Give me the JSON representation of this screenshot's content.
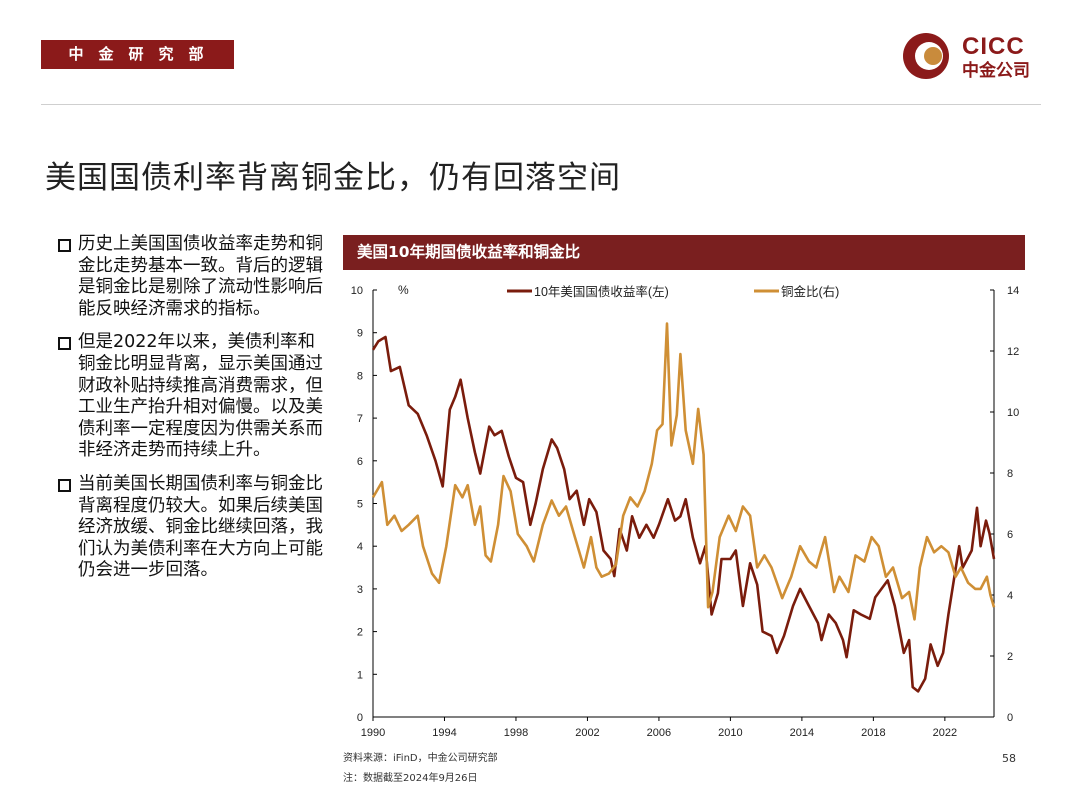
{
  "header": {
    "tag": "中金研究部",
    "logo_en": "CICC",
    "logo_cn": "中金公司"
  },
  "title": "美国国债利率背离铜金比，仍有回落空间",
  "bullets": [
    "历史上美国国债收益率走势和铜金比走势基本一致。背后的逻辑是铜金比是剔除了流动性影响后能反映经济需求的指标。",
    "但是2022年以来，美债利率和铜金比明显背离，显示美国通过财政补贴持续推高消费需求，但工业生产抬升相对偏慢。以及美债利率一定程度因为供需关系而非经济走势而持续上升。",
    "当前美国长期国债利率与铜金比背离程度仍较大。如果后续美国经济放缓、铜金比继续回落，我们认为美债利率在大方向上可能仍会进一步回落。"
  ],
  "chart_header": "美国10年期国债收益率和铜金比",
  "footer": {
    "source": "资料来源：iFinD，中金公司研究部",
    "note": "注：数据截至2024年9月26日",
    "page": "58"
  },
  "colors": {
    "brand": "#8b1a1a",
    "series_yield": "#7a1c0c",
    "series_ratio": "#cf8f35"
  },
  "chart_data": {
    "type": "line",
    "title": "美国10年期国债收益率和铜金比",
    "unit_label": "%",
    "x_ticks": [
      "1990",
      "1994",
      "1998",
      "2002",
      "2006",
      "2010",
      "2014",
      "2018",
      "2022"
    ],
    "xlim": [
      1990,
      2024.75
    ],
    "ylim_left": [
      0,
      10
    ],
    "ylim_right": [
      0,
      14
    ],
    "yticks_left": [
      "0",
      "1",
      "2",
      "3",
      "4",
      "5",
      "6",
      "7",
      "8",
      "9",
      "10"
    ],
    "yticks_right": [
      "0",
      "2",
      "4",
      "6",
      "8",
      "10",
      "12",
      "14"
    ],
    "legend": "top",
    "series": [
      {
        "name": "10年美国国债收益率(左)",
        "axis": "left",
        "points": [
          [
            1990.0,
            8.6
          ],
          [
            1990.3,
            8.8
          ],
          [
            1990.7,
            8.9
          ],
          [
            1991.0,
            8.1
          ],
          [
            1991.5,
            8.2
          ],
          [
            1992.0,
            7.3
          ],
          [
            1992.5,
            7.1
          ],
          [
            1993.0,
            6.6
          ],
          [
            1993.5,
            6.0
          ],
          [
            1993.9,
            5.4
          ],
          [
            1994.3,
            7.2
          ],
          [
            1994.6,
            7.5
          ],
          [
            1994.9,
            7.9
          ],
          [
            1995.3,
            7.0
          ],
          [
            1995.7,
            6.2
          ],
          [
            1996.0,
            5.7
          ],
          [
            1996.5,
            6.8
          ],
          [
            1996.8,
            6.6
          ],
          [
            1997.2,
            6.7
          ],
          [
            1997.6,
            6.1
          ],
          [
            1998.0,
            5.6
          ],
          [
            1998.4,
            5.5
          ],
          [
            1998.8,
            4.5
          ],
          [
            1999.1,
            5.0
          ],
          [
            1999.5,
            5.8
          ],
          [
            2000.0,
            6.5
          ],
          [
            2000.3,
            6.3
          ],
          [
            2000.7,
            5.8
          ],
          [
            2001.0,
            5.1
          ],
          [
            2001.4,
            5.3
          ],
          [
            2001.8,
            4.5
          ],
          [
            2002.1,
            5.1
          ],
          [
            2002.5,
            4.8
          ],
          [
            2002.9,
            3.9
          ],
          [
            2003.3,
            3.7
          ],
          [
            2003.5,
            3.3
          ],
          [
            2003.8,
            4.4
          ],
          [
            2004.2,
            3.9
          ],
          [
            2004.5,
            4.7
          ],
          [
            2004.9,
            4.2
          ],
          [
            2005.3,
            4.5
          ],
          [
            2005.7,
            4.2
          ],
          [
            2006.0,
            4.5
          ],
          [
            2006.5,
            5.1
          ],
          [
            2006.9,
            4.6
          ],
          [
            2007.2,
            4.7
          ],
          [
            2007.5,
            5.1
          ],
          [
            2007.9,
            4.2
          ],
          [
            2008.3,
            3.6
          ],
          [
            2008.6,
            4.0
          ],
          [
            2008.95,
            2.4
          ],
          [
            2009.3,
            2.9
          ],
          [
            2009.5,
            3.7
          ],
          [
            2010.0,
            3.7
          ],
          [
            2010.3,
            3.9
          ],
          [
            2010.7,
            2.6
          ],
          [
            2011.1,
            3.6
          ],
          [
            2011.5,
            3.1
          ],
          [
            2011.8,
            2.0
          ],
          [
            2012.3,
            1.9
          ],
          [
            2012.6,
            1.5
          ],
          [
            2013.0,
            1.9
          ],
          [
            2013.5,
            2.6
          ],
          [
            2013.9,
            3.0
          ],
          [
            2014.4,
            2.6
          ],
          [
            2014.9,
            2.2
          ],
          [
            2015.1,
            1.8
          ],
          [
            2015.5,
            2.4
          ],
          [
            2015.9,
            2.2
          ],
          [
            2016.3,
            1.8
          ],
          [
            2016.5,
            1.4
          ],
          [
            2016.9,
            2.5
          ],
          [
            2017.3,
            2.4
          ],
          [
            2017.8,
            2.3
          ],
          [
            2018.1,
            2.8
          ],
          [
            2018.8,
            3.2
          ],
          [
            2019.2,
            2.6
          ],
          [
            2019.7,
            1.5
          ],
          [
            2020.0,
            1.8
          ],
          [
            2020.2,
            0.7
          ],
          [
            2020.5,
            0.6
          ],
          [
            2020.9,
            0.9
          ],
          [
            2021.2,
            1.7
          ],
          [
            2021.6,
            1.2
          ],
          [
            2021.9,
            1.5
          ],
          [
            2022.2,
            2.4
          ],
          [
            2022.8,
            4.0
          ],
          [
            2023.0,
            3.5
          ],
          [
            2023.5,
            3.9
          ],
          [
            2023.8,
            4.9
          ],
          [
            2024.0,
            4.0
          ],
          [
            2024.3,
            4.6
          ],
          [
            2024.5,
            4.3
          ],
          [
            2024.75,
            3.7
          ]
        ]
      },
      {
        "name": "铜金比(右)",
        "axis": "right",
        "points": [
          [
            1990.0,
            7.2
          ],
          [
            1990.5,
            7.7
          ],
          [
            1990.8,
            6.3
          ],
          [
            1991.2,
            6.6
          ],
          [
            1991.6,
            6.1
          ],
          [
            1992.0,
            6.3
          ],
          [
            1992.5,
            6.6
          ],
          [
            1992.8,
            5.6
          ],
          [
            1993.3,
            4.7
          ],
          [
            1993.7,
            4.4
          ],
          [
            1994.1,
            5.6
          ],
          [
            1994.6,
            7.6
          ],
          [
            1995.0,
            7.2
          ],
          [
            1995.3,
            7.6
          ],
          [
            1995.7,
            6.3
          ],
          [
            1996.0,
            6.9
          ],
          [
            1996.3,
            5.3
          ],
          [
            1996.6,
            5.1
          ],
          [
            1997.0,
            6.3
          ],
          [
            1997.3,
            7.9
          ],
          [
            1997.7,
            7.4
          ],
          [
            1998.1,
            6.0
          ],
          [
            1998.6,
            5.6
          ],
          [
            1999.0,
            5.1
          ],
          [
            1999.5,
            6.3
          ],
          [
            2000.0,
            7.1
          ],
          [
            2000.4,
            6.6
          ],
          [
            2000.8,
            6.9
          ],
          [
            2001.3,
            5.9
          ],
          [
            2001.8,
            4.9
          ],
          [
            2002.2,
            5.9
          ],
          [
            2002.5,
            4.9
          ],
          [
            2002.8,
            4.6
          ],
          [
            2003.2,
            4.7
          ],
          [
            2003.6,
            5.0
          ],
          [
            2004.0,
            6.6
          ],
          [
            2004.4,
            7.2
          ],
          [
            2004.8,
            6.9
          ],
          [
            2005.2,
            7.4
          ],
          [
            2005.6,
            8.3
          ],
          [
            2005.9,
            9.4
          ],
          [
            2006.2,
            9.6
          ],
          [
            2006.45,
            12.9
          ],
          [
            2006.7,
            8.9
          ],
          [
            2007.0,
            9.9
          ],
          [
            2007.2,
            11.9
          ],
          [
            2007.5,
            9.4
          ],
          [
            2007.9,
            8.3
          ],
          [
            2008.2,
            10.1
          ],
          [
            2008.5,
            8.6
          ],
          [
            2008.75,
            3.6
          ],
          [
            2009.0,
            4.1
          ],
          [
            2009.4,
            5.9
          ],
          [
            2009.9,
            6.6
          ],
          [
            2010.3,
            6.1
          ],
          [
            2010.7,
            6.9
          ],
          [
            2011.1,
            6.6
          ],
          [
            2011.5,
            4.9
          ],
          [
            2011.9,
            5.3
          ],
          [
            2012.3,
            4.9
          ],
          [
            2012.6,
            4.4
          ],
          [
            2012.9,
            3.9
          ],
          [
            2013.4,
            4.6
          ],
          [
            2013.9,
            5.6
          ],
          [
            2014.4,
            5.1
          ],
          [
            2014.8,
            4.9
          ],
          [
            2015.3,
            5.9
          ],
          [
            2015.8,
            4.1
          ],
          [
            2016.1,
            4.6
          ],
          [
            2016.6,
            4.1
          ],
          [
            2017.0,
            5.3
          ],
          [
            2017.5,
            5.1
          ],
          [
            2017.9,
            5.9
          ],
          [
            2018.3,
            5.6
          ],
          [
            2018.7,
            4.6
          ],
          [
            2019.1,
            4.9
          ],
          [
            2019.6,
            3.9
          ],
          [
            2020.0,
            4.1
          ],
          [
            2020.3,
            3.2
          ],
          [
            2020.6,
            4.9
          ],
          [
            2021.0,
            5.9
          ],
          [
            2021.4,
            5.4
          ],
          [
            2021.8,
            5.6
          ],
          [
            2022.2,
            5.4
          ],
          [
            2022.6,
            4.6
          ],
          [
            2022.9,
            4.9
          ],
          [
            2023.3,
            4.4
          ],
          [
            2023.7,
            4.2
          ],
          [
            2024.0,
            4.2
          ],
          [
            2024.35,
            4.6
          ],
          [
            2024.55,
            4.0
          ],
          [
            2024.75,
            3.6
          ]
        ]
      }
    ]
  }
}
